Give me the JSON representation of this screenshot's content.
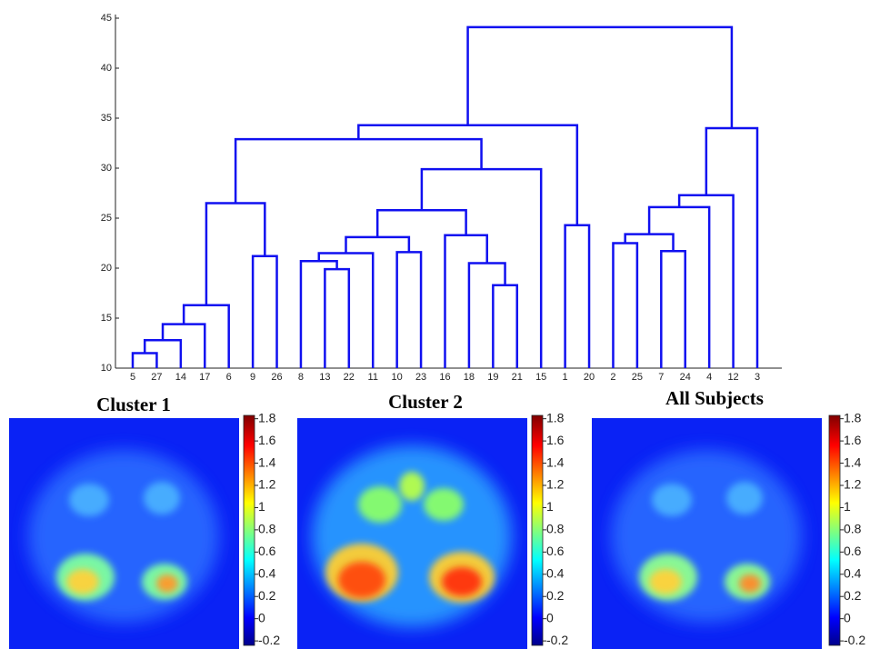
{
  "chart_data": {
    "type": "dendrogram",
    "color": "#1010f0",
    "ylim": [
      10,
      45
    ],
    "yticks": [
      10,
      15,
      20,
      25,
      30,
      35,
      40,
      45
    ],
    "tree": {
      "height": 44.1,
      "children": [
        {
          "height": 34.3,
          "children": [
            {
              "height": 32.9,
              "children": [
                {
                  "height": 26.5,
                  "children": [
                    {
                      "height": 16.3,
                      "children": [
                        {
                          "height": 14.4,
                          "children": [
                            {
                              "height": 12.8,
                              "children": [
                                {
                                  "height": 11.5,
                                  "children": [
                                    "5",
                                    "27"
                                  ]
                                },
                                "14"
                              ]
                            },
                            "17"
                          ]
                        },
                        "6"
                      ]
                    },
                    {
                      "height": 21.2,
                      "children": [
                        "9",
                        "26"
                      ]
                    }
                  ]
                },
                {
                  "height": 29.9,
                  "children": [
                    {
                      "height": 25.8,
                      "children": [
                        {
                          "height": 23.1,
                          "children": [
                            {
                              "height": 21.5,
                              "children": [
                                {
                                  "height": 20.7,
                                  "children": [
                                    "8",
                                    {
                                      "height": 19.9,
                                      "children": [
                                        "13",
                                        "22"
                                      ]
                                    }
                                  ]
                                },
                                "11"
                              ]
                            },
                            {
                              "height": 21.6,
                              "children": [
                                "10",
                                "23"
                              ]
                            }
                          ]
                        },
                        {
                          "height": 23.3,
                          "children": [
                            "16",
                            {
                              "height": 20.5,
                              "children": [
                                "18",
                                {
                                  "height": 18.3,
                                  "children": [
                                    "19",
                                    "21"
                                  ]
                                }
                              ]
                            }
                          ]
                        }
                      ]
                    },
                    "15"
                  ]
                }
              ]
            },
            {
              "height": 24.3,
              "children": [
                "1",
                "20"
              ]
            }
          ]
        },
        {
          "height": 34.0,
          "children": [
            {
              "height": 27.3,
              "children": [
                {
                  "height": 26.1,
                  "children": [
                    {
                      "height": 23.4,
                      "children": [
                        {
                          "height": 22.5,
                          "children": [
                            "2",
                            "25"
                          ]
                        },
                        {
                          "height": 21.7,
                          "children": [
                            "7",
                            "24"
                          ]
                        }
                      ]
                    },
                    "4"
                  ]
                },
                "12"
              ]
            },
            "3"
          ]
        }
      ]
    }
  },
  "panels": [
    {
      "title": "Cluster 1"
    },
    {
      "title": "Cluster 2"
    },
    {
      "title": "All Subjects"
    }
  ],
  "colorbar": {
    "lim": [
      -0.24,
      1.83
    ],
    "ticks": [
      -0.2,
      0,
      0.2,
      0.4,
      0.6,
      0.8,
      1,
      1.2,
      1.4,
      1.6,
      1.8
    ]
  }
}
